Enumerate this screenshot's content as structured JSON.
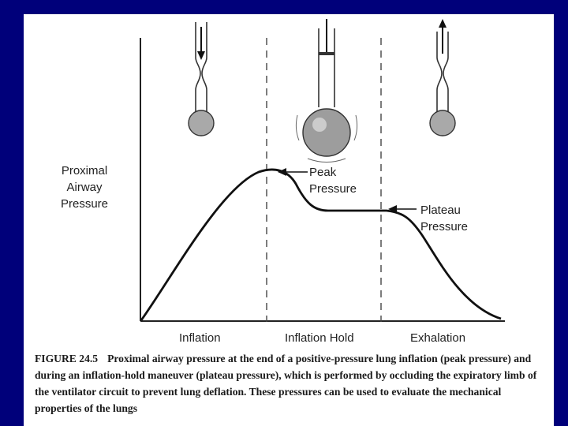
{
  "diagram": {
    "y_axis_label_lines": [
      "Proximal",
      "Airway",
      "Pressure"
    ],
    "phases": [
      "Inflation",
      "Inflation Hold",
      "Exhalation"
    ],
    "annotations": {
      "peak": [
        "Peak",
        "Pressure"
      ],
      "plateau": [
        "Plateau",
        "Pressure"
      ]
    },
    "icons": [
      "syringe-inflation-icon",
      "syringe-inflated-lung-icon",
      "syringe-exhalation-icon"
    ],
    "curve_color": "#111111"
  },
  "caption": {
    "figure_number": "FIGURE 24.5",
    "text": "Proximal airway pressure at the end of a positive-pressure lung inflation (peak pressure) and during an inflation-hold maneuver (plateau pressure), which is performed by occluding the expiratory limb of the ventilator circuit to prevent lung deflation. These pressures can be used to evaluate the mechanical properties of the lungs"
  }
}
